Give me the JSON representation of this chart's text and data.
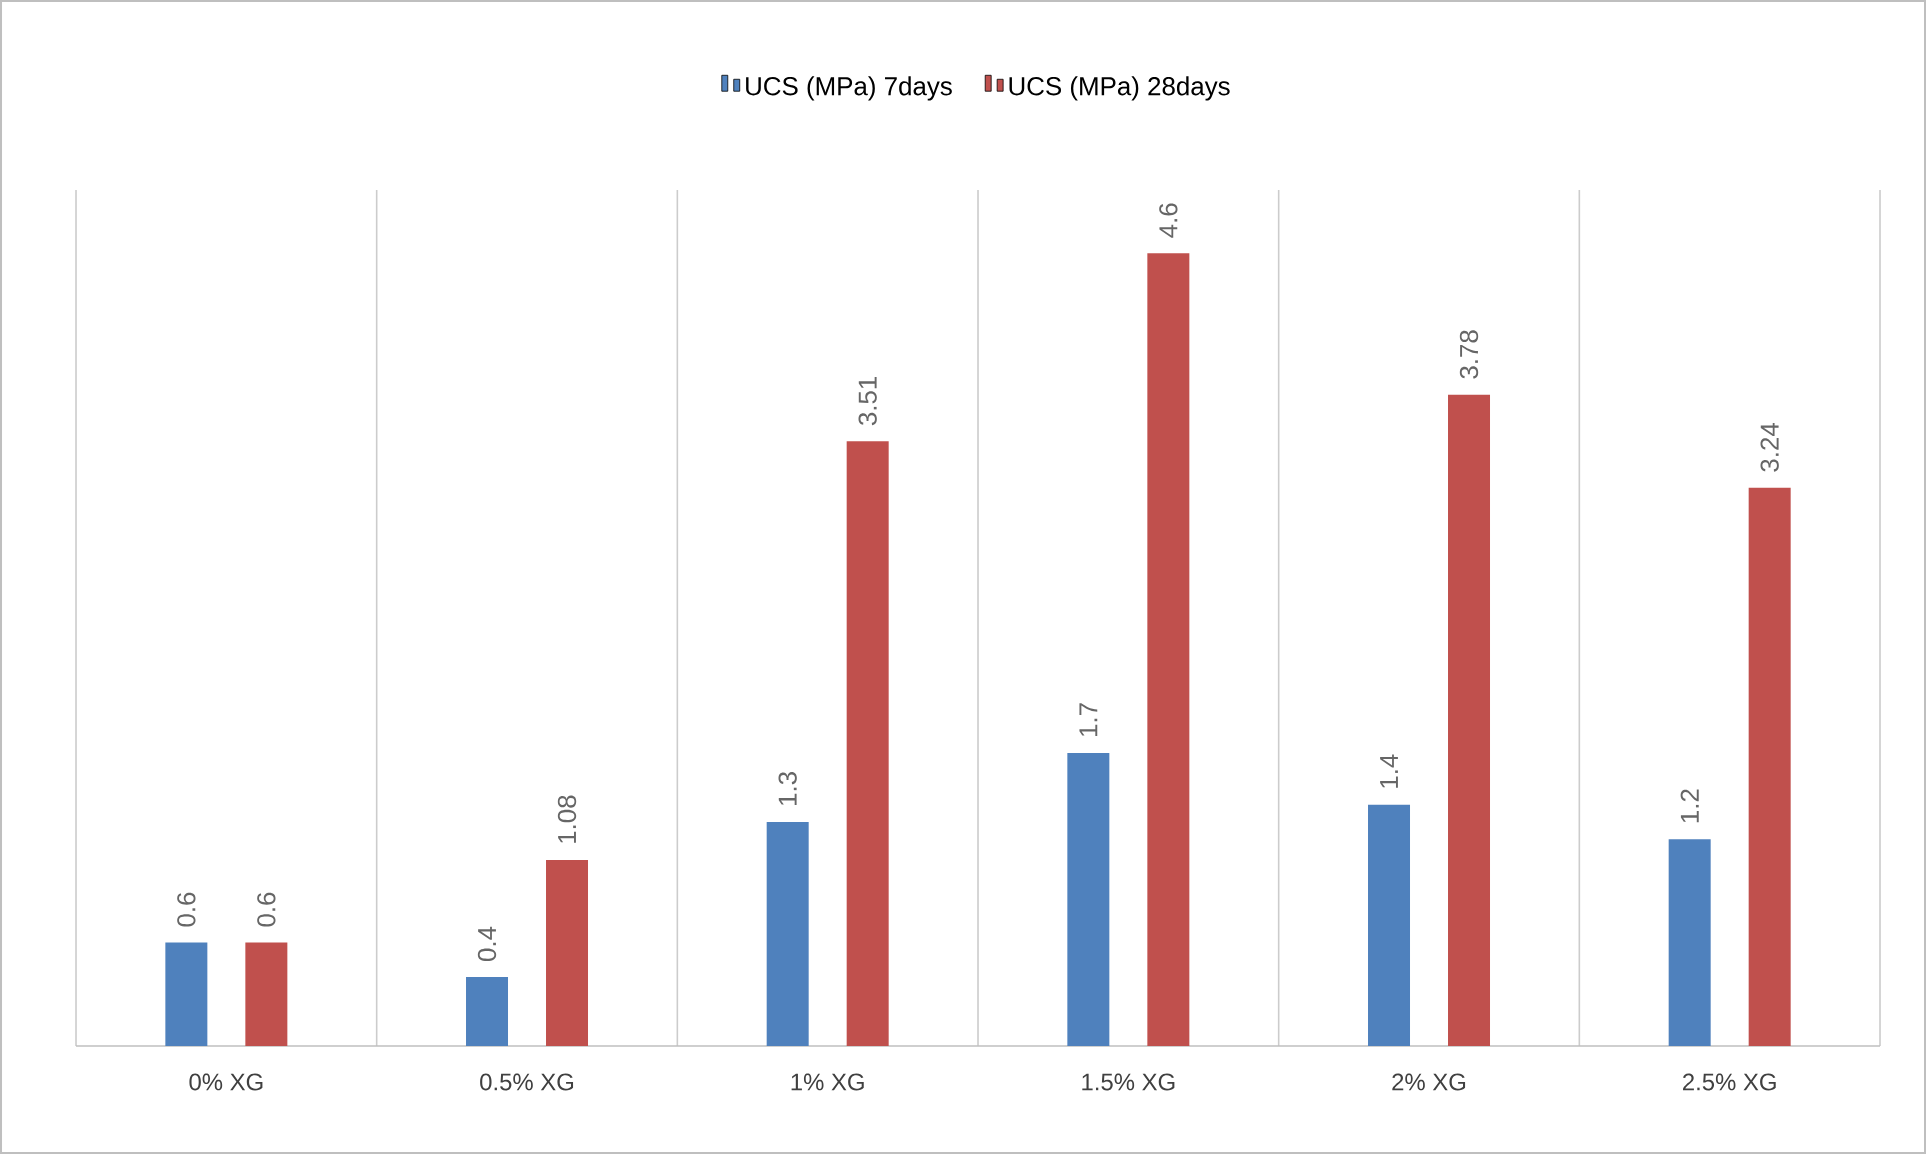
{
  "chart_data": {
    "type": "bar",
    "categories": [
      "0% XG",
      "0.5% XG",
      "1% XG",
      "1.5% XG",
      "2% XG",
      "2.5% XG"
    ],
    "series": [
      {
        "name": "UCS (MPa) 7days",
        "color": "#4f81bd",
        "values": [
          0.6,
          0.4,
          1.3,
          1.7,
          1.4,
          1.2
        ]
      },
      {
        "name": "UCS (MPa) 28days",
        "color": "#c0504d",
        "values": [
          0.6,
          1.08,
          3.51,
          4.6,
          3.78,
          3.24
        ]
      }
    ],
    "data_labels": true,
    "grid": "x",
    "legend": "top"
  }
}
